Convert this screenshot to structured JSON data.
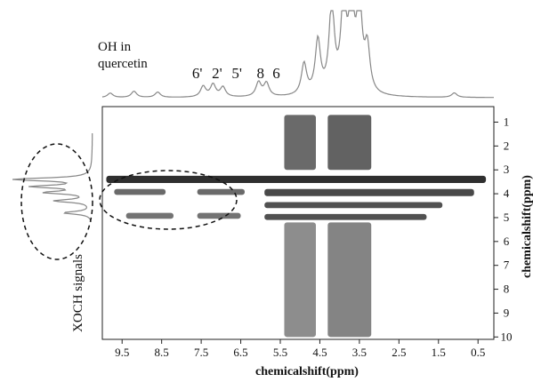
{
  "chart_data": {
    "type": "heatmap",
    "title": "",
    "xlabel": "chemicalshift(ppm)",
    "ylabel": "chemicalshift(ppm)",
    "x_axis": {
      "reversed": true,
      "ticks": [
        "9.5",
        "8.5",
        "7.5",
        "6.5",
        "5.5",
        "4.5",
        "3.5",
        "2.5",
        "1.5",
        "0.5"
      ]
    },
    "y_axis": {
      "position": "right",
      "ticks": [
        "1",
        "2",
        "3",
        "4",
        "5",
        "6",
        "7",
        "8",
        "9",
        "10"
      ]
    },
    "annotations": {
      "oh_label_line1": "OH in",
      "oh_label_line2": "quercetin",
      "xoch_label": "XOCH signals",
      "peak_labels": [
        {
          "text": "6'",
          "x": 7.6
        },
        {
          "text": "2'",
          "x": 7.1
        },
        {
          "text": "5'",
          "x": 6.6
        },
        {
          "text": "8",
          "x": 6.0
        },
        {
          "text": "6",
          "x": 5.6
        }
      ]
    },
    "top_projection_peaks": [
      {
        "x": 9.8,
        "height": 0.05
      },
      {
        "x": 9.2,
        "height": 0.07
      },
      {
        "x": 8.6,
        "height": 0.06
      },
      {
        "x": 7.45,
        "height": 0.12
      },
      {
        "x": 7.2,
        "height": 0.14
      },
      {
        "x": 6.95,
        "height": 0.11
      },
      {
        "x": 6.05,
        "height": 0.16
      },
      {
        "x": 5.85,
        "height": 0.15
      },
      {
        "x": 4.9,
        "height": 0.35
      },
      {
        "x": 4.55,
        "height": 0.6
      },
      {
        "x": 4.2,
        "height": 1.0
      },
      {
        "x": 3.9,
        "height": 1.0
      },
      {
        "x": 3.7,
        "height": 1.0
      },
      {
        "x": 3.5,
        "height": 1.0
      },
      {
        "x": 3.3,
        "height": 0.5
      },
      {
        "x": 1.1,
        "height": 0.05
      }
    ],
    "left_projection_peaks": [
      {
        "y": 3.4,
        "height": 1.0
      },
      {
        "y": 3.7,
        "height": 0.7
      },
      {
        "y": 3.95,
        "height": 0.55
      },
      {
        "y": 4.3,
        "height": 0.45
      },
      {
        "y": 4.8,
        "height": 0.35
      }
    ],
    "cross_peak_regions": [
      {
        "x_from": 5.4,
        "x_to": 4.6,
        "y_from": 0.7,
        "y_to": 3.0,
        "intensity": 0.55
      },
      {
        "x_from": 4.3,
        "x_to": 3.2,
        "y_from": 0.7,
        "y_to": 3.0,
        "intensity": 0.6
      },
      {
        "x_from": 9.9,
        "x_to": 0.3,
        "y_from": 3.25,
        "y_to": 3.55,
        "intensity": 0.9
      },
      {
        "x_from": 5.9,
        "x_to": 0.6,
        "y_from": 3.8,
        "y_to": 4.1,
        "intensity": 0.75
      },
      {
        "x_from": 5.9,
        "x_to": 1.4,
        "y_from": 4.35,
        "y_to": 4.6,
        "intensity": 0.7
      },
      {
        "x_from": 5.9,
        "x_to": 1.8,
        "y_from": 4.85,
        "y_to": 5.1,
        "intensity": 0.7
      },
      {
        "x_from": 9.7,
        "x_to": 8.4,
        "y_from": 3.8,
        "y_to": 4.05,
        "intensity": 0.55
      },
      {
        "x_from": 9.4,
        "x_to": 8.2,
        "y_from": 4.8,
        "y_to": 5.05,
        "intensity": 0.5
      },
      {
        "x_from": 7.6,
        "x_to": 6.4,
        "y_from": 3.8,
        "y_to": 4.05,
        "intensity": 0.55
      },
      {
        "x_from": 7.6,
        "x_to": 6.5,
        "y_from": 4.8,
        "y_to": 5.05,
        "intensity": 0.5
      },
      {
        "x_from": 5.4,
        "x_to": 4.6,
        "y_from": 5.2,
        "y_to": 10.0,
        "intensity": 0.35
      },
      {
        "x_from": 4.3,
        "x_to": 3.2,
        "y_from": 5.2,
        "y_to": 10.0,
        "intensity": 0.4
      }
    ],
    "grid": false,
    "legend": "none"
  }
}
